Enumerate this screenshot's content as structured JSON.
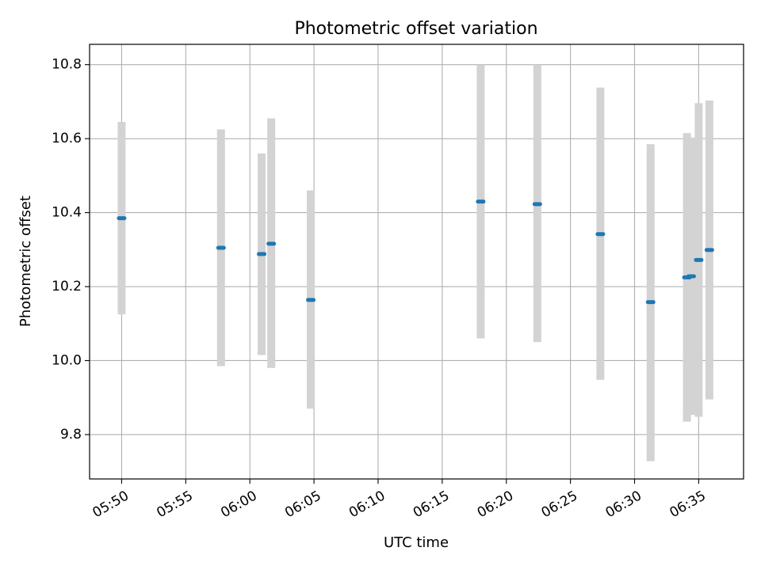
{
  "chart_data": {
    "type": "scatter",
    "title": "Photometric offset variation",
    "xlabel": "UTC time",
    "ylabel": "Photometric offset",
    "xlim": [
      "05:47:30",
      "06:38:30"
    ],
    "ylim": [
      9.68,
      10.855
    ],
    "x_ticks": [
      "05:50",
      "05:55",
      "06:00",
      "06:05",
      "06:10",
      "06:15",
      "06:20",
      "06:25",
      "06:30",
      "06:35"
    ],
    "y_ticks": [
      9.8,
      10.0,
      10.2,
      10.4,
      10.6,
      10.8
    ],
    "y_tick_labels": [
      "9.8",
      "10.0",
      "10.2",
      "10.4",
      "10.6",
      "10.8"
    ],
    "grid": true,
    "colors": {
      "point": "#1f77b4",
      "errorbar": "#d3d3d3",
      "grid": "#b0b0b0"
    },
    "points": [
      {
        "t": "05:50:00",
        "y": 10.385,
        "ylo": 10.125,
        "yhi": 10.645
      },
      {
        "t": "05:57:45",
        "y": 10.305,
        "ylo": 9.985,
        "yhi": 10.625
      },
      {
        "t": "06:00:55",
        "y": 10.288,
        "ylo": 10.015,
        "yhi": 10.56
      },
      {
        "t": "06:01:40",
        "y": 10.316,
        "ylo": 9.98,
        "yhi": 10.655
      },
      {
        "t": "06:04:45",
        "y": 10.164,
        "ylo": 9.87,
        "yhi": 10.46
      },
      {
        "t": "06:18:00",
        "y": 10.43,
        "ylo": 10.06,
        "yhi": 10.8
      },
      {
        "t": "06:22:25",
        "y": 10.423,
        "ylo": 10.05,
        "yhi": 10.8
      },
      {
        "t": "06:27:20",
        "y": 10.342,
        "ylo": 9.948,
        "yhi": 10.738
      },
      {
        "t": "06:31:15",
        "y": 10.158,
        "ylo": 9.728,
        "yhi": 10.585
      },
      {
        "t": "06:34:05",
        "y": 10.225,
        "ylo": 9.835,
        "yhi": 10.615
      },
      {
        "t": "06:34:25",
        "y": 10.228,
        "ylo": 9.853,
        "yhi": 10.603
      },
      {
        "t": "06:35:00",
        "y": 10.272,
        "ylo": 9.848,
        "yhi": 10.696
      },
      {
        "t": "06:35:50",
        "y": 10.299,
        "ylo": 9.895,
        "yhi": 10.703
      }
    ]
  }
}
